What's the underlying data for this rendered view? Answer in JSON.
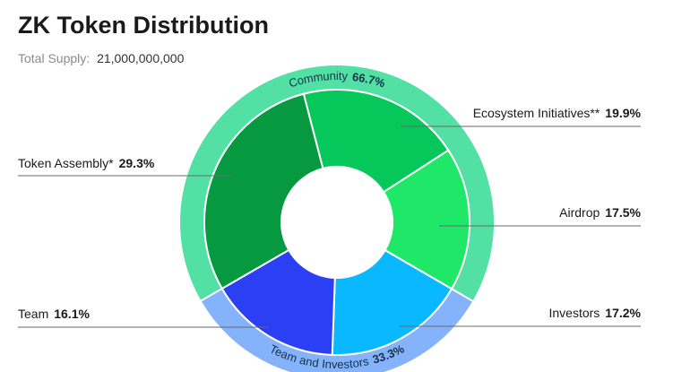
{
  "chart_data": {
    "type": "donut",
    "title": "ZK Token Distribution",
    "subtitle_label": "Total Supply:",
    "subtitle_value": "21,000,000,000",
    "categories": [
      "Token Assembly*",
      "Ecosystem Initiatives**",
      "Airdrop",
      "Investors",
      "Team"
    ],
    "values": [
      29.3,
      19.9,
      17.5,
      17.2,
      16.1
    ],
    "value_labels": [
      "29.3%",
      "19.9%",
      "17.5%",
      "17.2%",
      "16.1%"
    ],
    "colors": [
      "#07993f",
      "#06c75a",
      "#1fe868",
      "#0ab8ff",
      "#2b3ff5"
    ],
    "outer": {
      "categories": [
        "Community",
        "Team and Investors"
      ],
      "values": [
        66.7,
        33.3
      ],
      "value_labels": [
        "66.7%",
        "33.3%"
      ],
      "colors": [
        "#52e0a4",
        "#84b2fb"
      ]
    }
  }
}
